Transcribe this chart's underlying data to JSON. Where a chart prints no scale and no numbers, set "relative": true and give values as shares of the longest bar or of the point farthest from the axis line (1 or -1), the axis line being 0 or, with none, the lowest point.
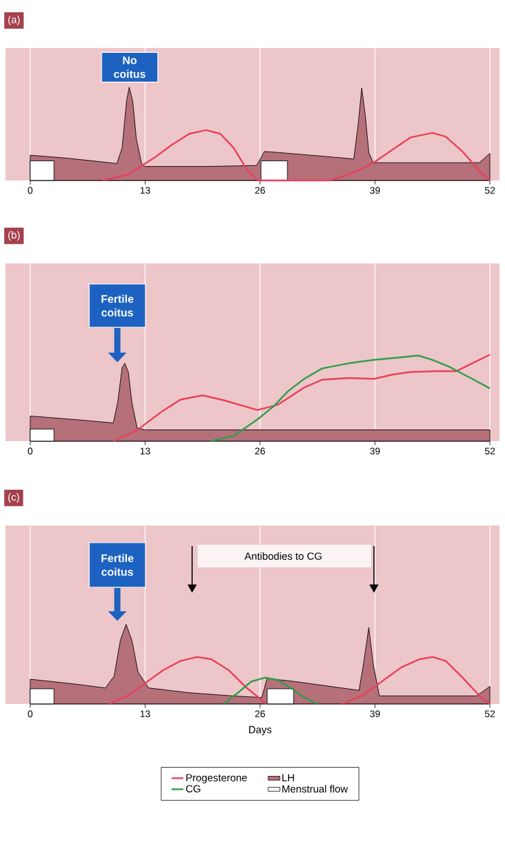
{
  "chart_data": [
    {
      "type": "line",
      "title": "(a)",
      "relative": true,
      "xlim": [
        0,
        52
      ],
      "xticks": [
        0,
        13,
        26,
        39,
        52
      ],
      "grid": "x",
      "annotations": [
        "No coitus"
      ],
      "series": [
        {
          "type": "area",
          "color": "#b5707a",
          "x": [
            0,
            4,
            8,
            9.8,
            10.4,
            10.9,
            11.2,
            11.6,
            12.0,
            12.6,
            13,
            20,
            25.6,
            26.5,
            28,
            33,
            36.6,
            37.1,
            37.5,
            37.9,
            38.3,
            38.8,
            45,
            50.8,
            52
          ],
          "values": [
            0.27,
            0.24,
            0.2,
            0.18,
            0.35,
            0.85,
            1.0,
            0.85,
            0.45,
            0.18,
            0.15,
            0.15,
            0.16,
            0.31,
            0.3,
            0.26,
            0.23,
            0.6,
            0.99,
            0.7,
            0.3,
            0.19,
            0.19,
            0.19,
            0.29
          ]
        },
        {
          "type": "area",
          "color": "#ffffff",
          "x": [
            0,
            2.7,
            14,
            26.1,
            29.1
          ],
          "values": [
            0.21,
            0.21,
            null,
            0.21,
            0.21
          ]
        },
        {
          "color": "#e8405a",
          "x": [
            8.2,
            11,
            14,
            16,
            18,
            19.9,
            21.5,
            23,
            24.5,
            25.7,
            30,
            34,
            37,
            39,
            41,
            43,
            45.5,
            47,
            49,
            51,
            52
          ],
          "values": [
            0,
            0.06,
            0.24,
            0.38,
            0.5,
            0.54,
            0.5,
            0.35,
            0.12,
            0,
            0,
            0,
            0.1,
            0.2,
            0.33,
            0.46,
            0.51,
            0.47,
            0.3,
            0.08,
            0
          ]
        }
      ]
    },
    {
      "type": "line",
      "title": "(b)",
      "relative": true,
      "xlim": [
        0,
        52
      ],
      "xticks": [
        0,
        13,
        26,
        39,
        52
      ],
      "grid": "x",
      "annotations": [
        "Fertile coitus"
      ],
      "series": [
        {
          "type": "area",
          "color": "#b5707a",
          "x": [
            0,
            5,
            9.4,
            9.9,
            10.4,
            10.7,
            11.1,
            11.5,
            12.1,
            13,
            30,
            52
          ],
          "values": [
            0.29,
            0.25,
            0.21,
            0.45,
            0.85,
            0.9,
            0.8,
            0.45,
            0.15,
            0.13,
            0.13,
            0.13
          ]
        },
        {
          "type": "area",
          "color": "#ffffff",
          "x": [
            0,
            2.7
          ],
          "values": [
            0.14,
            0.14
          ]
        },
        {
          "color": "#e8405a",
          "x": [
            9.4,
            12,
            15,
            17,
            19.5,
            22,
            25.7,
            28,
            31,
            33,
            36,
            38.9,
            41,
            43,
            46,
            48.2,
            50,
            52
          ],
          "values": [
            0,
            0.12,
            0.35,
            0.48,
            0.53,
            0.47,
            0.36,
            0.42,
            0.62,
            0.71,
            0.73,
            0.72,
            0.77,
            0.8,
            0.81,
            0.81,
            0.9,
            1.0
          ]
        },
        {
          "color": "#2e9e48",
          "x": [
            20.4,
            23,
            25.7,
            27.5,
            29.2,
            31,
            33,
            36,
            38.9,
            41,
            43.9,
            45.5,
            47.4,
            50,
            52
          ],
          "values": [
            0,
            0.06,
            0.25,
            0.4,
            0.58,
            0.72,
            0.84,
            0.9,
            0.94,
            0.96,
            0.99,
            0.94,
            0.86,
            0.72,
            0.61
          ]
        }
      ]
    },
    {
      "type": "line",
      "title": "(c)",
      "xlabel": "Days",
      "relative": true,
      "xlim": [
        0,
        52
      ],
      "xticks": [
        0,
        13,
        26,
        39,
        52
      ],
      "grid": "x",
      "legend": "bottom",
      "annotations": [
        "Fertile coitus",
        "Antibodies to CG"
      ],
      "series": [
        {
          "name": "Progesterone",
          "color": "#e8405a",
          "x": [
            8.9,
            11,
            13,
            15,
            17,
            18.9,
            20.5,
            22.5,
            24.5,
            26.7,
            31,
            35.3,
            37.5,
            40,
            42,
            44,
            45.5,
            47,
            49,
            51,
            52
          ],
          "values": [
            0,
            0.1,
            0.26,
            0.42,
            0.54,
            0.59,
            0.56,
            0.42,
            0.2,
            0,
            null,
            0,
            0.1,
            0.3,
            0.46,
            0.56,
            0.59,
            0.54,
            0.32,
            0.08,
            0
          ]
        },
        {
          "name": "LH",
          "type": "area",
          "color": "#b5707a",
          "x": [
            0,
            5,
            8.5,
            9.5,
            10.2,
            10.85,
            11.5,
            12.2,
            13.4,
            18,
            22.9,
            26.2,
            26.8,
            30,
            37.2,
            37.7,
            38.3,
            38.8,
            39.5,
            45,
            50.5,
            52
          ],
          "values": [
            0.31,
            0.25,
            0.2,
            0.35,
            0.8,
            1.0,
            0.8,
            0.4,
            0.2,
            0.14,
            0.1,
            0.08,
            0.32,
            0.28,
            0.17,
            0.5,
            0.96,
            0.5,
            0.1,
            0.1,
            0.1,
            0.22
          ]
        },
        {
          "name": "CG",
          "color": "#2e9e48",
          "x": [
            21.9,
            23.5,
            25,
            26.6,
            28,
            29.5,
            31,
            32.5
          ],
          "values": [
            0,
            0.14,
            0.28,
            0.33,
            0.3,
            0.2,
            0.08,
            0
          ]
        },
        {
          "name": "Menstrual flow",
          "type": "area",
          "color": "#ffffff",
          "x": [
            0,
            2.7,
            14,
            26.8,
            29.8
          ],
          "values": [
            0.19,
            0.19,
            null,
            0.19,
            0.19
          ]
        }
      ]
    }
  ]
}
